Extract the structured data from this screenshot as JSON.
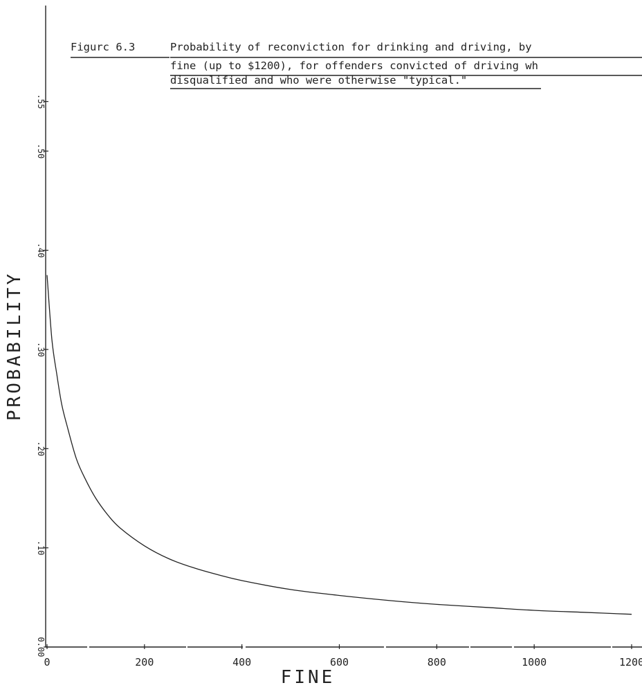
{
  "caption": {
    "label": "Figurc 6.3",
    "lines": [
      "Probability of reconviction for drinking and driving, by",
      "fine (up to $1200), for offenders convicted of driving wh",
      "disqualified and who were otherwise \"typical.\""
    ]
  },
  "chart_data": {
    "type": "line",
    "title": "Figurc 6.3 Probability of reconviction for drinking and driving, by fine (up to $1200), for offenders convicted of driving wh disqualified and who were otherwise \"typical.\"",
    "xlabel": "FINE",
    "ylabel": "PROBABILITY",
    "xlim": [
      0,
      1200
    ],
    "ylim": [
      0,
      0.6
    ],
    "x_ticks": [
      0,
      200,
      400,
      600,
      800,
      1000,
      1200
    ],
    "x_tick_labels": [
      "0",
      "200",
      "400",
      "600",
      "800",
      "1000",
      "1200"
    ],
    "y_ticks": [
      0,
      0.1,
      0.2,
      0.3,
      0.4,
      0.5,
      0.55
    ],
    "y_tick_labels": [
      "0.00",
      ".10",
      ".20",
      ".30",
      ".40",
      ".50",
      ".55"
    ],
    "grid": false,
    "legend": "none",
    "series": [
      {
        "x": [
          0,
          10,
          20,
          30,
          40,
          60,
          80,
          100,
          125,
          150,
          200,
          250,
          300,
          350,
          400,
          500,
          600,
          700,
          800,
          900,
          1000,
          1100,
          1200
        ],
        "y": [
          0.375,
          0.31,
          0.275,
          0.245,
          0.225,
          0.19,
          0.168,
          0.15,
          0.133,
          0.12,
          0.102,
          0.089,
          0.08,
          0.073,
          0.067,
          0.058,
          0.052,
          0.047,
          0.043,
          0.04,
          0.037,
          0.035,
          0.033
        ]
      }
    ]
  }
}
